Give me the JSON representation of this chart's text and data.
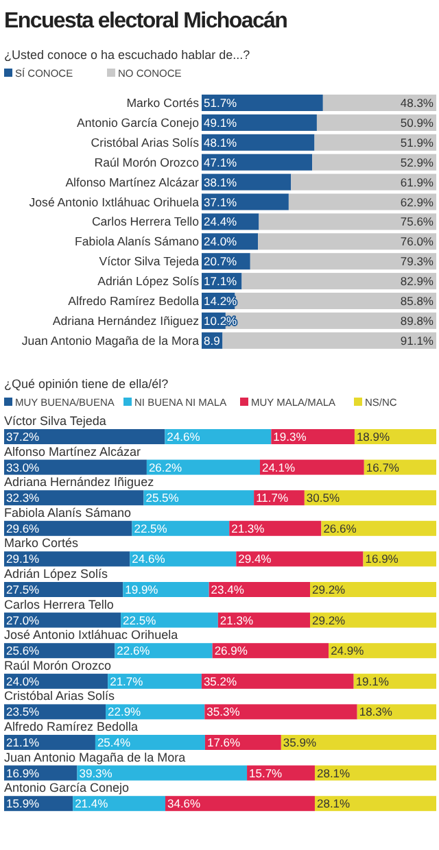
{
  "chart_data": [
    {
      "type": "bar",
      "orientation": "horizontal",
      "stacked": true,
      "title": "Encuesta electoral Michoacán",
      "subtitle": "¿Usted conoce o ha escuchado hablar de...?",
      "legend": "top left",
      "xlim": [
        0,
        100
      ],
      "categories": [
        "Marko Cortés",
        "Antonio García Conejo",
        "Cristóbal Arias Solís",
        "Raúl Morón Orozco",
        "Alfonso Martínez Alcázar",
        "José Antonio Ixtláhuac Orihuela",
        "Carlos Herrera Tello",
        "Fabiola Alanís Sámano",
        "Víctor Silva Tejeda",
        "Adrián López Solís",
        "Alfredo Ramírez Bedolla",
        "Adriana Hernández Iñiguez",
        "Juan Antonio Magaña de la Mora"
      ],
      "series": [
        {
          "name": "SÍ CONOCE",
          "color": "#1f5a96",
          "values": [
            51.7,
            49.1,
            48.1,
            47.1,
            38.1,
            37.1,
            24.4,
            24.0,
            20.7,
            17.1,
            14.2,
            10.2,
            8.9
          ],
          "value_labels": [
            "51.7%",
            "49.1%",
            "48.1%",
            "47.1%",
            "38.1%",
            "37.1%",
            "24.4%",
            "24.0%",
            "20.7%",
            "17.1%",
            "14.2%",
            "10.2%",
            "8.9"
          ]
        },
        {
          "name": "NO CONOCE",
          "color": "#c9c9c9",
          "values": [
            48.3,
            50.9,
            51.9,
            52.9,
            61.9,
            62.9,
            75.6,
            76.0,
            79.3,
            82.9,
            85.8,
            89.8,
            91.1
          ],
          "value_labels": [
            "48.3%",
            "50.9%",
            "51.9%",
            "52.9%",
            "61.9%",
            "62.9%",
            "75.6%",
            "76.0%",
            "79.3%",
            "82.9%",
            "85.8%",
            "89.8%",
            "91.1%"
          ]
        }
      ]
    },
    {
      "type": "bar",
      "orientation": "horizontal",
      "stacked": true,
      "title": "¿Qué opinión tiene de ella/él?",
      "legend": "top left",
      "xlim": [
        0,
        100
      ],
      "categories": [
        "Víctor Silva Tejeda",
        "Alfonso Martínez Alcázar",
        "Adriana Hernández Iñiguez",
        "Fabiola Alanís Sámano",
        "Marko Cortés",
        "Adrián López Solís",
        "Carlos Herrera Tello",
        "José Antonio Ixtláhuac Orihuela",
        "Raúl Morón Orozco",
        "Cristóbal Arias Solís",
        "Alfredo Ramírez Bedolla",
        "Juan Antonio Magaña de la Mora",
        "Antonio García Conejo"
      ],
      "series": [
        {
          "name": "MUY BUENA/BUENA",
          "color": "#1f5a96",
          "values": [
            37.2,
            33.0,
            32.3,
            29.6,
            29.1,
            27.5,
            27.0,
            25.6,
            24.0,
            23.5,
            21.1,
            16.9,
            15.9
          ],
          "value_labels": [
            "37.2%",
            "33.0%",
            "32.3%",
            "29.6%",
            "29.1%",
            "27.5%",
            "27.0%",
            "25.6%",
            "24.0%",
            "23.5%",
            "21.1%",
            "16.9%",
            "15.9%"
          ]
        },
        {
          "name": "NI BUENA NI MALA",
          "color": "#2bb5e0",
          "values": [
            24.6,
            26.2,
            25.5,
            22.5,
            24.6,
            19.9,
            22.5,
            22.6,
            21.7,
            22.9,
            25.4,
            39.3,
            21.4
          ],
          "value_labels": [
            "24.6%",
            "26.2%",
            "25.5%",
            "22.5%",
            "24.6%",
            "19.9%",
            "22.5%",
            "22.6%",
            "21.7%",
            "22.9%",
            "25.4%",
            "39.3%",
            "21.4%"
          ]
        },
        {
          "name": "MUY MALA/MALA",
          "color": "#e0264f",
          "values": [
            19.3,
            24.1,
            11.7,
            21.3,
            29.4,
            23.4,
            21.3,
            26.9,
            35.2,
            35.3,
            17.6,
            15.7,
            34.6
          ],
          "value_labels": [
            "19.3%",
            "24.1%",
            "11.7%",
            "21.3%",
            "29.4%",
            "23.4%",
            "21.3%",
            "26.9%",
            "35.2%",
            "35.3%",
            "17.6%",
            "15.7%",
            "34.6%"
          ]
        },
        {
          "name": "NS/NC",
          "color": "#e6d92c",
          "values": [
            18.9,
            16.7,
            30.5,
            26.6,
            16.9,
            29.2,
            29.2,
            24.9,
            19.1,
            18.3,
            35.9,
            28.1,
            28.1
          ],
          "value_labels": [
            "18.9%",
            "16.7%",
            "30.5%",
            "26.6%",
            "16.9%",
            "29.2%",
            "29.2%",
            "24.9%",
            "19.1%",
            "18.3%",
            "35.9%",
            "28.1%",
            "28.1%"
          ]
        }
      ]
    }
  ]
}
